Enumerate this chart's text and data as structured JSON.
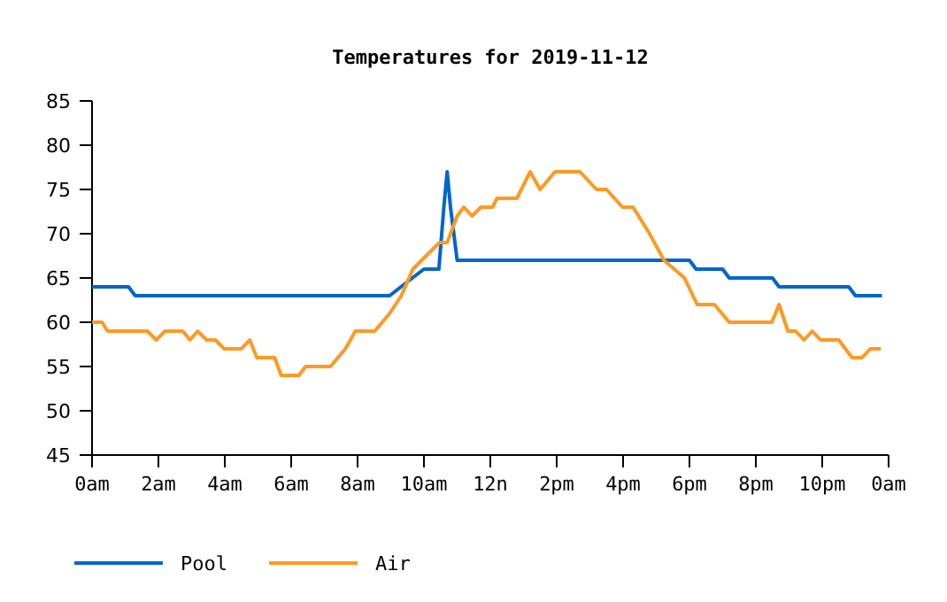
{
  "chart_data": {
    "type": "line",
    "title": "Temperatures for 2019-11-12",
    "xlim": [
      "2019-11-12T00:00",
      "2019-11-13T00:00"
    ],
    "xticks": [
      {
        "value": "2019-11-12T00:00",
        "label": "0am"
      },
      {
        "value": "2019-11-12T02:00",
        "label": "2am"
      },
      {
        "value": "2019-11-12T04:00",
        "label": "4am"
      },
      {
        "value": "2019-11-12T06:00",
        "label": "6am"
      },
      {
        "value": "2019-11-12T08:00",
        "label": "8am"
      },
      {
        "value": "2019-11-12T10:00",
        "label": "10am"
      },
      {
        "value": "2019-11-12T12:00",
        "label": "12n"
      },
      {
        "value": "2019-11-12T14:00",
        "label": "2pm"
      },
      {
        "value": "2019-11-12T16:00",
        "label": "4pm"
      },
      {
        "value": "2019-11-12T18:00",
        "label": "6pm"
      },
      {
        "value": "2019-11-12T20:00",
        "label": "8pm"
      },
      {
        "value": "2019-11-12T22:00",
        "label": "10pm"
      },
      {
        "value": "2019-11-13T00:00",
        "label": "0am"
      }
    ],
    "ylim": [
      45,
      85
    ],
    "yticks": [
      45,
      50,
      55,
      60,
      65,
      70,
      75,
      80,
      85
    ],
    "grid": false,
    "legend": "bottom",
    "marker": "none",
    "line_style": "solid",
    "series": [
      {
        "name": "Pool",
        "color": "#0066cc",
        "x": [
          "2019-11-12T00:00",
          "2019-11-12T01:06",
          "2019-11-12T01:18",
          "2019-11-12T08:58",
          "2019-11-12T09:39",
          "2019-11-12T10:00",
          "2019-11-12T10:27",
          "2019-11-12T10:36",
          "2019-11-12T10:42",
          "2019-11-12T10:48",
          "2019-11-12T11:00",
          "2019-11-12T18:00",
          "2019-11-12T18:12",
          "2019-11-12T19:00",
          "2019-11-12T19:12",
          "2019-11-12T20:30",
          "2019-11-12T20:42",
          "2019-11-12T22:48",
          "2019-11-12T23:00",
          "2019-11-12T23:48"
        ],
        "values": [
          64,
          64,
          63,
          63,
          65,
          66,
          66,
          73,
          77,
          73,
          67,
          67,
          66,
          66,
          65,
          65,
          64,
          64,
          63,
          63
        ]
      },
      {
        "name": "Air",
        "color": "#ff9922",
        "x": [
          "2019-11-12T00:00",
          "2019-11-12T00:18",
          "2019-11-12T00:28",
          "2019-11-12T01:40",
          "2019-11-12T01:56",
          "2019-11-12T02:12",
          "2019-11-12T02:44",
          "2019-11-12T02:57",
          "2019-11-12T03:11",
          "2019-11-12T03:27",
          "2019-11-12T03:43",
          "2019-11-12T03:59",
          "2019-11-12T04:30",
          "2019-11-12T04:45",
          "2019-11-12T04:58",
          "2019-11-12T05:30",
          "2019-11-12T05:42",
          "2019-11-12T06:14",
          "2019-11-12T06:26",
          "2019-11-12T07:11",
          "2019-11-12T07:38",
          "2019-11-12T07:56",
          "2019-11-12T08:31",
          "2019-11-12T08:58",
          "2019-11-12T09:19",
          "2019-11-12T09:40",
          "2019-11-12T10:12",
          "2019-11-12T10:28",
          "2019-11-12T10:42",
          "2019-11-12T11:00",
          "2019-11-12T11:12",
          "2019-11-12T11:27",
          "2019-11-12T11:43",
          "2019-11-12T12:04",
          "2019-11-12T12:12",
          "2019-11-12T12:48",
          "2019-11-12T13:12",
          "2019-11-12T13:30",
          "2019-11-12T13:57",
          "2019-11-12T14:42",
          "2019-11-12T15:12",
          "2019-11-12T15:30",
          "2019-11-12T15:59",
          "2019-11-12T16:18",
          "2019-11-12T16:48",
          "2019-11-12T17:14",
          "2019-11-12T17:51",
          "2019-11-12T18:14",
          "2019-11-12T18:45",
          "2019-11-12T19:12",
          "2019-11-12T20:29",
          "2019-11-12T20:42",
          "2019-11-12T20:58",
          "2019-11-12T21:12",
          "2019-11-12T21:27",
          "2019-11-12T21:42",
          "2019-11-12T21:57",
          "2019-11-12T22:30",
          "2019-11-12T22:54",
          "2019-11-12T23:12",
          "2019-11-12T23:27",
          "2019-11-12T23:46"
        ],
        "values": [
          60,
          60,
          59,
          59,
          58,
          59,
          59,
          58,
          59,
          58,
          58,
          57,
          57,
          58,
          56,
          56,
          54,
          54,
          55,
          55,
          57,
          59,
          59,
          61,
          63,
          66,
          68,
          69,
          69,
          72,
          73,
          72,
          73,
          73,
          74,
          74,
          77,
          75,
          77,
          77,
          75,
          75,
          73,
          73,
          70,
          67,
          65,
          62,
          62,
          60,
          60,
          62,
          59,
          59,
          58,
          59,
          58,
          58,
          56,
          56,
          57,
          57
        ]
      }
    ]
  }
}
